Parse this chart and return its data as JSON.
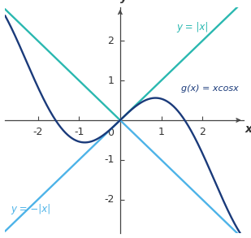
{
  "xlim": [
    -2.8,
    3.0
  ],
  "ylim": [
    -2.85,
    2.85
  ],
  "xticks": [
    -2,
    -1,
    1,
    2
  ],
  "yticks": [
    -2,
    -1,
    1,
    2
  ],
  "color_abs": "#2ab8b0",
  "color_neg_abs": "#4db3e8",
  "color_gx": "#1a3a7a",
  "label_abs": "y = |x|",
  "label_neg_abs": "y = −|x|",
  "label_gx": "g(x) = xcosx",
  "xlabel": "x",
  "ylabel": "y",
  "background_color": "#ffffff",
  "tick_fontsize": 9,
  "label_fontsize": 10,
  "linewidth": 1.7
}
